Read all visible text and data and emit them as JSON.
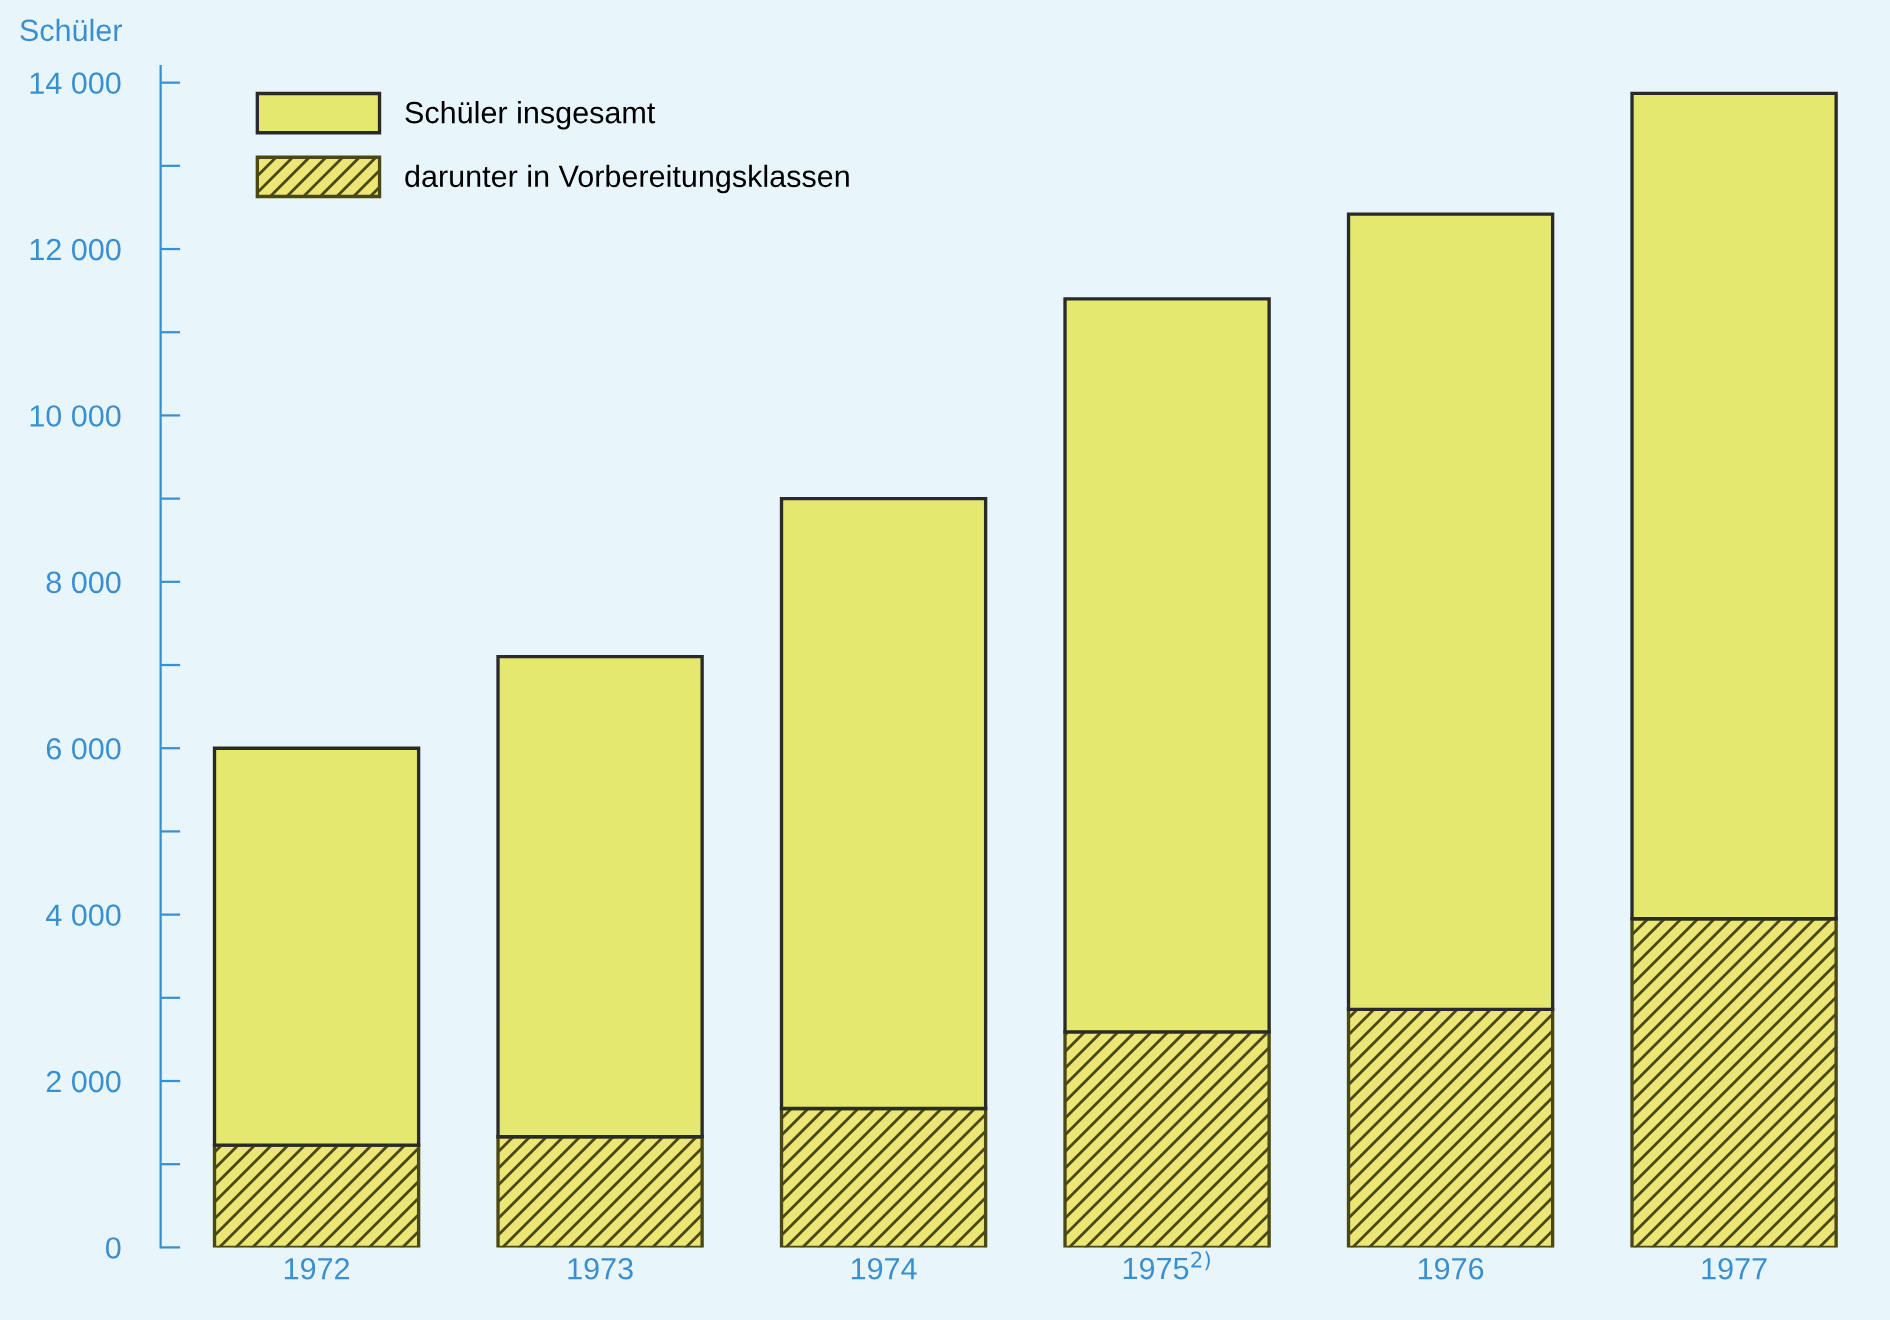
{
  "chart_data": {
    "type": "bar",
    "stacked": true,
    "ylabel": "Schüler",
    "categories": [
      "1972",
      "1973",
      "1974",
      "1975$^{2)}$",
      "1976",
      "1977"
    ],
    "series": [
      {
        "name": "darunter in Vorbereitungsklassen",
        "color": "#4a4815",
        "values": [
          1230,
          1330,
          1670,
          2590,
          2860,
          3950
        ]
      },
      {
        "name": "Schüler insgesamt",
        "color": "#e4e86e",
        "values": [
          4770,
          5770,
          7330,
          8810,
          9560,
          9920
        ]
      }
    ],
    "ylim": [
      0,
      14200
    ],
    "yticks": [
      0,
      {
        "value": 1000,
        "label": null
      },
      {
        "value": 2000,
        "label": "2 000"
      },
      {
        "value": 3000,
        "label": null
      },
      {
        "value": 4000,
        "label": "4 000"
      },
      {
        "value": 5000,
        "label": null
      },
      {
        "value": 6000,
        "label": "6 000"
      },
      {
        "value": 7000,
        "label": null
      },
      {
        "value": 8000,
        "label": "8 000"
      },
      {
        "value": 9000,
        "label": null
      },
      {
        "value": 10000,
        "label": "10 000"
      },
      {
        "value": 11000,
        "label": null
      },
      {
        "value": 12000,
        "label": "12 000"
      },
      {
        "value": 13000,
        "label": null
      },
      {
        "value": 14000,
        "label": "14 000"
      }
    ],
    "grid": false,
    "legend": "top left"
  }
}
